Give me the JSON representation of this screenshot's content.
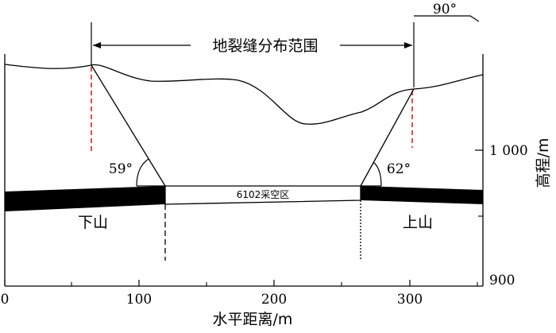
{
  "figure": {
    "range_label": "地裂缝分布范围",
    "panel_label": "6102采空区",
    "left_slope": "下山",
    "right_slope": "上山",
    "left_angle": "59°",
    "right_angle": "62°",
    "direction_label": "90°",
    "x_axis": {
      "label": "水平距离/m",
      "ticks": [
        "0",
        "100",
        "200",
        "300"
      ]
    },
    "y_axis": {
      "label": "高程/m",
      "ticks": [
        "1 000",
        "900"
      ]
    },
    "colors": {
      "stroke": "#000000",
      "crack_marker": "#e02020",
      "coal_seam": "#000000"
    }
  }
}
